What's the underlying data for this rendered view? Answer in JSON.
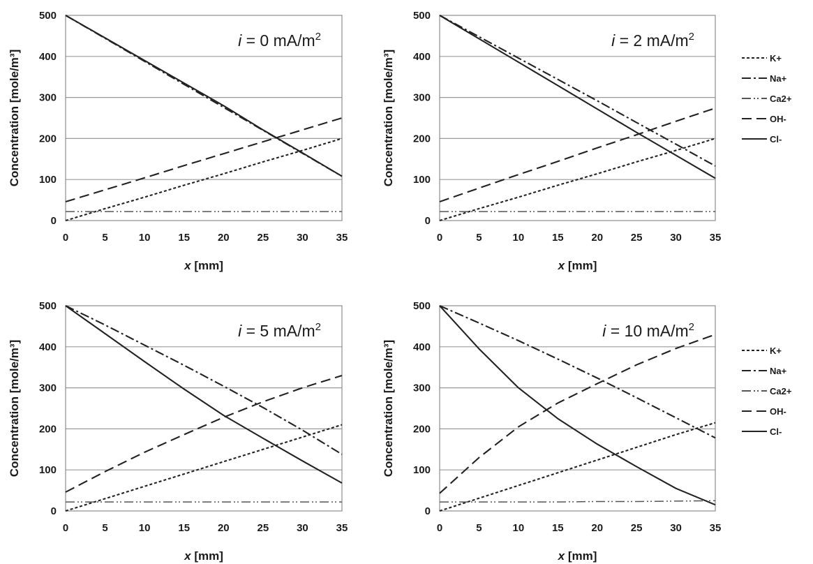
{
  "chart_data": [
    {
      "type": "line",
      "label": {
        "pre": "i",
        "mid": " = 0 mA/m",
        "sup": "2"
      },
      "xlabel": {
        "var": "x",
        "unit": " [mm]"
      },
      "ylabel": "Concentration [mole/m³]",
      "xlim": [
        0,
        35
      ],
      "ylim": [
        0,
        500
      ],
      "xticks": [
        "0",
        "5",
        "10",
        "15",
        "20",
        "25",
        "30",
        "35"
      ],
      "yticks": [
        "0",
        "100",
        "200",
        "300",
        "400",
        "500"
      ],
      "x": [
        0,
        5,
        10,
        15,
        20,
        25,
        30,
        35
      ],
      "series": [
        {
          "name": "K+",
          "values": [
            0,
            29,
            57,
            86,
            114,
            143,
            171,
            200
          ]
        },
        {
          "name": "Na+",
          "values": [
            500,
            444,
            388,
            332,
            276,
            220,
            164,
            108
          ]
        },
        {
          "name": "Ca2+",
          "values": [
            22,
            22,
            22,
            22,
            22,
            22,
            22,
            22
          ]
        },
        {
          "name": "OH-",
          "values": [
            46,
            75,
            104,
            134,
            163,
            192,
            221,
            250
          ]
        },
        {
          "name": "Cl-",
          "values": [
            500,
            445,
            390,
            335,
            280,
            221,
            165,
            108
          ]
        }
      ]
    },
    {
      "type": "line",
      "label": {
        "pre": "i",
        "mid": " = 2 mA/m",
        "sup": "2"
      },
      "xlabel": {
        "var": "x",
        "unit": " [mm]"
      },
      "ylabel": "Concentration [mole/m³]",
      "xlim": [
        0,
        35
      ],
      "ylim": [
        0,
        500
      ],
      "xticks": [
        "0",
        "5",
        "10",
        "15",
        "20",
        "25",
        "30",
        "35"
      ],
      "yticks": [
        "0",
        "100",
        "200",
        "300",
        "400",
        "500"
      ],
      "x": [
        0,
        5,
        10,
        15,
        20,
        25,
        30,
        35
      ],
      "series": [
        {
          "name": "K+",
          "values": [
            0,
            29,
            57,
            86,
            114,
            143,
            171,
            200
          ]
        },
        {
          "name": "Na+",
          "values": [
            500,
            448,
            396,
            344,
            292,
            239,
            186,
            133
          ]
        },
        {
          "name": "Ca2+",
          "values": [
            22,
            22,
            22,
            22,
            22,
            22,
            22,
            22
          ]
        },
        {
          "name": "OH-",
          "values": [
            46,
            79,
            112,
            144,
            177,
            209,
            242,
            274
          ]
        },
        {
          "name": "Cl-",
          "values": [
            500,
            443,
            386,
            329,
            272,
            215,
            159,
            103
          ]
        }
      ]
    },
    {
      "type": "line",
      "label": {
        "pre": "i",
        "mid": " = 5 mA/m",
        "sup": "2"
      },
      "xlabel": {
        "var": "x",
        "unit": " [mm]"
      },
      "ylabel": "Concentration [mole/m³]",
      "xlim": [
        0,
        35
      ],
      "ylim": [
        0,
        500
      ],
      "xticks": [
        "0",
        "5",
        "10",
        "15",
        "20",
        "25",
        "30",
        "35"
      ],
      "yticks": [
        "0",
        "100",
        "200",
        "300",
        "400",
        "500"
      ],
      "x": [
        0,
        5,
        10,
        15,
        20,
        25,
        30,
        35
      ],
      "series": [
        {
          "name": "K+",
          "values": [
            0,
            30,
            60,
            90,
            120,
            150,
            180,
            210
          ]
        },
        {
          "name": "Na+",
          "values": [
            500,
            453,
            404,
            355,
            304,
            252,
            197,
            138
          ]
        },
        {
          "name": "Ca2+",
          "values": [
            22,
            22,
            22,
            22,
            22,
            22,
            22,
            22
          ]
        },
        {
          "name": "OH-",
          "values": [
            46,
            96,
            143,
            186,
            228,
            266,
            300,
            330
          ]
        },
        {
          "name": "Cl-",
          "values": [
            500,
            432,
            364,
            297,
            233,
            177,
            122,
            68
          ]
        }
      ]
    },
    {
      "type": "line",
      "label": {
        "pre": "i",
        "mid": " = 10 mA/m",
        "sup": "2"
      },
      "xlabel": {
        "var": "x",
        "unit": " [mm]"
      },
      "ylabel": "Concentration [mole/m³]",
      "xlim": [
        0,
        35
      ],
      "ylim": [
        0,
        500
      ],
      "xticks": [
        "0",
        "5",
        "10",
        "15",
        "20",
        "25",
        "30",
        "35"
      ],
      "yticks": [
        "0",
        "100",
        "200",
        "300",
        "400",
        "500"
      ],
      "x": [
        0,
        5,
        10,
        15,
        20,
        25,
        30,
        35
      ],
      "series": [
        {
          "name": "K+",
          "values": [
            0,
            31,
            62,
            93,
            124,
            155,
            186,
            215
          ]
        },
        {
          "name": "Na+",
          "values": [
            500,
            458,
            415,
            370,
            324,
            276,
            227,
            178
          ]
        },
        {
          "name": "Ca2+",
          "values": [
            22,
            22,
            22,
            22,
            23,
            23,
            24,
            25
          ]
        },
        {
          "name": "OH-",
          "values": [
            43,
            130,
            205,
            263,
            310,
            356,
            396,
            430
          ]
        },
        {
          "name": "Cl-",
          "values": [
            500,
            395,
            300,
            225,
            163,
            108,
            55,
            15
          ]
        }
      ]
    }
  ],
  "legend": {
    "placement": "right",
    "entries": [
      {
        "name": "K+",
        "dash": "4,3"
      },
      {
        "name": "Na+",
        "dash": "13,4,3,4"
      },
      {
        "name": "Ca2+",
        "dash": "13,4,2,3,2,4"
      },
      {
        "name": "OH-",
        "dash": "14,7"
      },
      {
        "name": "Cl-",
        "dash": ""
      }
    ]
  },
  "colors": {
    "line": "#222222",
    "ca_line": "#555555",
    "grid": "#9a9a9a"
  }
}
